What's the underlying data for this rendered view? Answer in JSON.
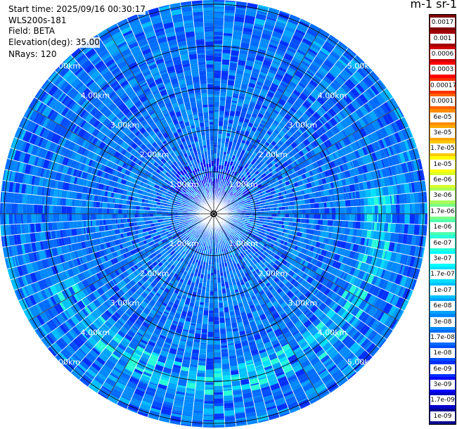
{
  "info": {
    "start_time": "Start time: 2025/09/16 00:30:17",
    "instrument": "WLS200s-181",
    "field": "Field: BETA",
    "elevation": "Elevation(deg): 35.00",
    "nrays": "NRays: 120"
  },
  "colorbar": {
    "title": "m-1 sr-1",
    "labels": [
      "0.0017",
      "0.001",
      "0.0006",
      "0.0003",
      "0.00017",
      "0.0001",
      "6e-05",
      "3e-05",
      "1.7e-05",
      "1e-05",
      "6e-06",
      "3e-06",
      "1.7e-06",
      "1e-06",
      "6e-07",
      "3e-07",
      "1.7e-07",
      "1e-07",
      "6e-08",
      "3e-08",
      "1.7e-08",
      "1e-08",
      "6e-09",
      "3e-09",
      "1.7e-09",
      "1e-09"
    ],
    "colors": [
      "#800000",
      "#a00000",
      "#d00000",
      "#ff0000",
      "#ff3000",
      "#ff6000",
      "#ff8c00",
      "#ffa800",
      "#ffc800",
      "#ffff00",
      "#d8ff28",
      "#a8ff58",
      "#78ff88",
      "#50ffb0",
      "#28ffd8",
      "#00ffff",
      "#00e0ff",
      "#00c0ff",
      "#00a4ff",
      "#0088ff",
      "#006cff",
      "#0050ff",
      "#0030ff",
      "#0000ff",
      "#0000c8",
      "#000090"
    ]
  },
  "chart_data": {
    "type": "heatmap",
    "projection": "polar (PPI)",
    "field": "BETA",
    "units": "m-1 sr-1",
    "elevation_deg": 35.0,
    "n_rays": 120,
    "azimuth_step_deg": 3,
    "range_rings_km": [
      1,
      2,
      3,
      4,
      5
    ],
    "ring_labels": [
      "1.00km",
      "2.00km",
      "3.00km",
      "4.00km",
      "5.00km"
    ],
    "ring_label_bearings_deg": [
      -45,
      45,
      135,
      -135
    ],
    "max_range_km": 5.1,
    "spokes_deg": [
      0,
      30,
      60,
      90,
      120,
      150,
      180,
      210,
      240,
      270,
      300,
      330
    ],
    "dominant_value_range": [
      "3e-08",
      "1.7e-08"
    ],
    "enhanced_band": {
      "value": "1e-07",
      "range_km": [
        3.6,
        4.3
      ],
      "bearing_deg": [
        80,
        245
      ]
    },
    "near_center_low_values": "6e-09"
  }
}
